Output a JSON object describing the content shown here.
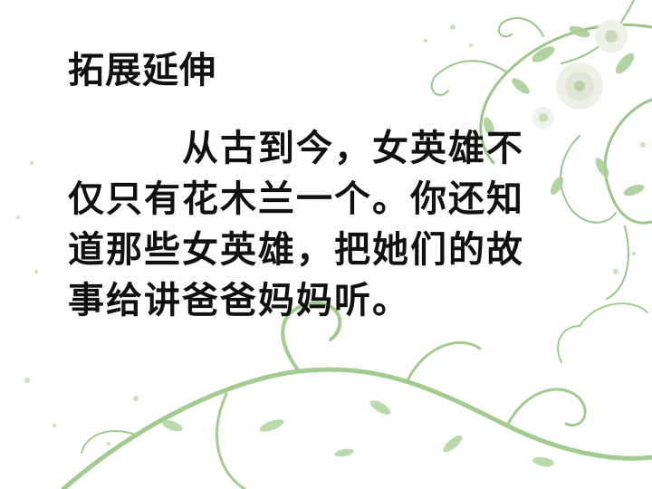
{
  "slide": {
    "title": "拓展延伸",
    "body": "从古到今，女英雄不仅只有花木兰一个。你还知道那些女英雄，把她们的故事给讲爸爸妈妈听。"
  },
  "theme": {
    "vine_color": "#9cc48a",
    "vine_light": "#c8e0bd",
    "flower_color": "#e6ebe0",
    "text_color": "#111111"
  }
}
